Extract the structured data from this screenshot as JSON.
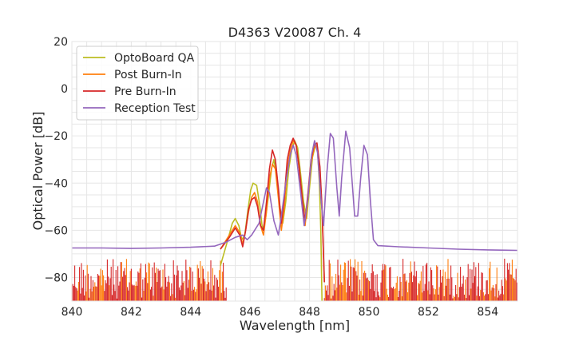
{
  "chart_data": {
    "type": "line",
    "title": "D4363 V20087 Ch. 4",
    "xlabel": "Wavelength [nm]",
    "ylabel": "Optical Power [dB]",
    "xlim": [
      840,
      855
    ],
    "ylim": [
      -90,
      20
    ],
    "x_ticks": [
      840,
      842,
      844,
      846,
      848,
      850,
      852,
      854
    ],
    "y_ticks": [
      20,
      0,
      -20,
      -40,
      -60,
      -80
    ],
    "x_tick_labels": [
      "840",
      "842",
      "844",
      "846",
      "848",
      "850",
      "852",
      "854"
    ],
    "y_tick_labels": [
      "20",
      "0",
      "−20",
      "−40",
      "−60",
      "−80"
    ],
    "grid": true,
    "legend_position": "top-left",
    "series": [
      {
        "name": "OptoBoard QA",
        "color": "#bcbd22",
        "points": [
          [
            845.0,
            -75
          ],
          [
            845.25,
            -64
          ],
          [
            845.4,
            -57
          ],
          [
            845.5,
            -55
          ],
          [
            845.62,
            -58
          ],
          [
            845.72,
            -64
          ],
          [
            845.82,
            -62
          ],
          [
            845.92,
            -52
          ],
          [
            846.02,
            -43
          ],
          [
            846.1,
            -40
          ],
          [
            846.22,
            -41
          ],
          [
            846.33,
            -50
          ],
          [
            846.42,
            -60
          ],
          [
            846.52,
            -55
          ],
          [
            846.62,
            -45
          ],
          [
            846.72,
            -34
          ],
          [
            846.8,
            -30
          ],
          [
            846.9,
            -38
          ],
          [
            847.0,
            -50
          ],
          [
            847.1,
            -57
          ],
          [
            847.2,
            -48
          ],
          [
            847.3,
            -34
          ],
          [
            847.4,
            -26
          ],
          [
            847.5,
            -22
          ],
          [
            847.6,
            -25
          ],
          [
            847.7,
            -36
          ],
          [
            847.8,
            -48
          ],
          [
            847.9,
            -55
          ],
          [
            848.0,
            -42
          ],
          [
            848.1,
            -29
          ],
          [
            848.2,
            -24
          ],
          [
            848.27,
            -26
          ],
          [
            848.33,
            -40
          ],
          [
            848.38,
            -60
          ],
          [
            848.42,
            -90
          ]
        ]
      },
      {
        "name": "Post Burn-In",
        "color": "#ff7f0e",
        "points": [
          [
            845.0,
            -68
          ],
          [
            845.3,
            -62
          ],
          [
            845.5,
            -58
          ],
          [
            845.65,
            -61
          ],
          [
            845.75,
            -66
          ],
          [
            845.85,
            -60
          ],
          [
            845.95,
            -52
          ],
          [
            846.05,
            -46
          ],
          [
            846.15,
            -44
          ],
          [
            846.25,
            -48
          ],
          [
            846.35,
            -58
          ],
          [
            846.45,
            -62
          ],
          [
            846.55,
            -52
          ],
          [
            846.65,
            -38
          ],
          [
            846.75,
            -32
          ],
          [
            846.85,
            -34
          ],
          [
            846.95,
            -46
          ],
          [
            847.05,
            -60
          ],
          [
            847.15,
            -50
          ],
          [
            847.25,
            -34
          ],
          [
            847.35,
            -26
          ],
          [
            847.45,
            -22
          ],
          [
            847.55,
            -24
          ],
          [
            847.65,
            -34
          ],
          [
            847.75,
            -48
          ],
          [
            847.85,
            -58
          ],
          [
            847.95,
            -46
          ],
          [
            848.05,
            -32
          ],
          [
            848.15,
            -25
          ],
          [
            848.25,
            -24
          ],
          [
            848.35,
            -34
          ],
          [
            848.42,
            -52
          ],
          [
            848.5,
            -82
          ]
        ]
      },
      {
        "name": "Pre Burn-In",
        "color": "#d62728",
        "points": [
          [
            845.0,
            -68
          ],
          [
            845.3,
            -63
          ],
          [
            845.5,
            -59
          ],
          [
            845.65,
            -62
          ],
          [
            845.75,
            -67
          ],
          [
            845.85,
            -60
          ],
          [
            845.95,
            -51
          ],
          [
            846.05,
            -47
          ],
          [
            846.15,
            -46
          ],
          [
            846.25,
            -50
          ],
          [
            846.35,
            -58
          ],
          [
            846.45,
            -60
          ],
          [
            846.55,
            -48
          ],
          [
            846.65,
            -34
          ],
          [
            846.75,
            -26
          ],
          [
            846.85,
            -30
          ],
          [
            846.95,
            -42
          ],
          [
            847.05,
            -57
          ],
          [
            847.15,
            -46
          ],
          [
            847.25,
            -30
          ],
          [
            847.35,
            -24
          ],
          [
            847.45,
            -21
          ],
          [
            847.55,
            -24
          ],
          [
            847.65,
            -33
          ],
          [
            847.75,
            -46
          ],
          [
            847.85,
            -56
          ],
          [
            847.95,
            -44
          ],
          [
            848.05,
            -30
          ],
          [
            848.15,
            -24
          ],
          [
            848.25,
            -23
          ],
          [
            848.35,
            -33
          ],
          [
            848.42,
            -50
          ],
          [
            848.5,
            -82
          ]
        ]
      },
      {
        "name": "Reception Test",
        "color": "#9467bd",
        "points": [
          [
            840,
            -67.5
          ],
          [
            841,
            -67.5
          ],
          [
            842,
            -67.7
          ],
          [
            843,
            -67.5
          ],
          [
            844,
            -67.2
          ],
          [
            844.8,
            -66.7
          ],
          [
            845.2,
            -65
          ],
          [
            845.5,
            -63
          ],
          [
            845.75,
            -62
          ],
          [
            845.9,
            -64
          ],
          [
            846.05,
            -62
          ],
          [
            846.15,
            -60
          ],
          [
            846.3,
            -57
          ],
          [
            846.45,
            -48
          ],
          [
            846.55,
            -42
          ],
          [
            846.65,
            -44
          ],
          [
            846.8,
            -56
          ],
          [
            846.95,
            -62
          ],
          [
            847.05,
            -54
          ],
          [
            847.2,
            -40
          ],
          [
            847.35,
            -28
          ],
          [
            847.45,
            -24
          ],
          [
            847.55,
            -28
          ],
          [
            847.7,
            -44
          ],
          [
            847.82,
            -58
          ],
          [
            847.95,
            -46
          ],
          [
            848.07,
            -28
          ],
          [
            848.17,
            -22
          ],
          [
            848.27,
            -27
          ],
          [
            848.38,
            -46
          ],
          [
            848.47,
            -58
          ],
          [
            848.58,
            -36
          ],
          [
            848.7,
            -19
          ],
          [
            848.8,
            -21
          ],
          [
            848.92,
            -42
          ],
          [
            849.0,
            -54
          ],
          [
            849.08,
            -38
          ],
          [
            849.22,
            -18
          ],
          [
            849.35,
            -25
          ],
          [
            849.52,
            -54
          ],
          [
            849.62,
            -54
          ],
          [
            849.72,
            -38
          ],
          [
            849.83,
            -24
          ],
          [
            849.95,
            -28
          ],
          [
            850.05,
            -48
          ],
          [
            850.15,
            -64
          ],
          [
            850.3,
            -66.5
          ],
          [
            851,
            -67
          ],
          [
            852,
            -67.5
          ],
          [
            853,
            -68
          ],
          [
            854,
            -68.3
          ],
          [
            855,
            -68.5
          ]
        ]
      }
    ]
  }
}
